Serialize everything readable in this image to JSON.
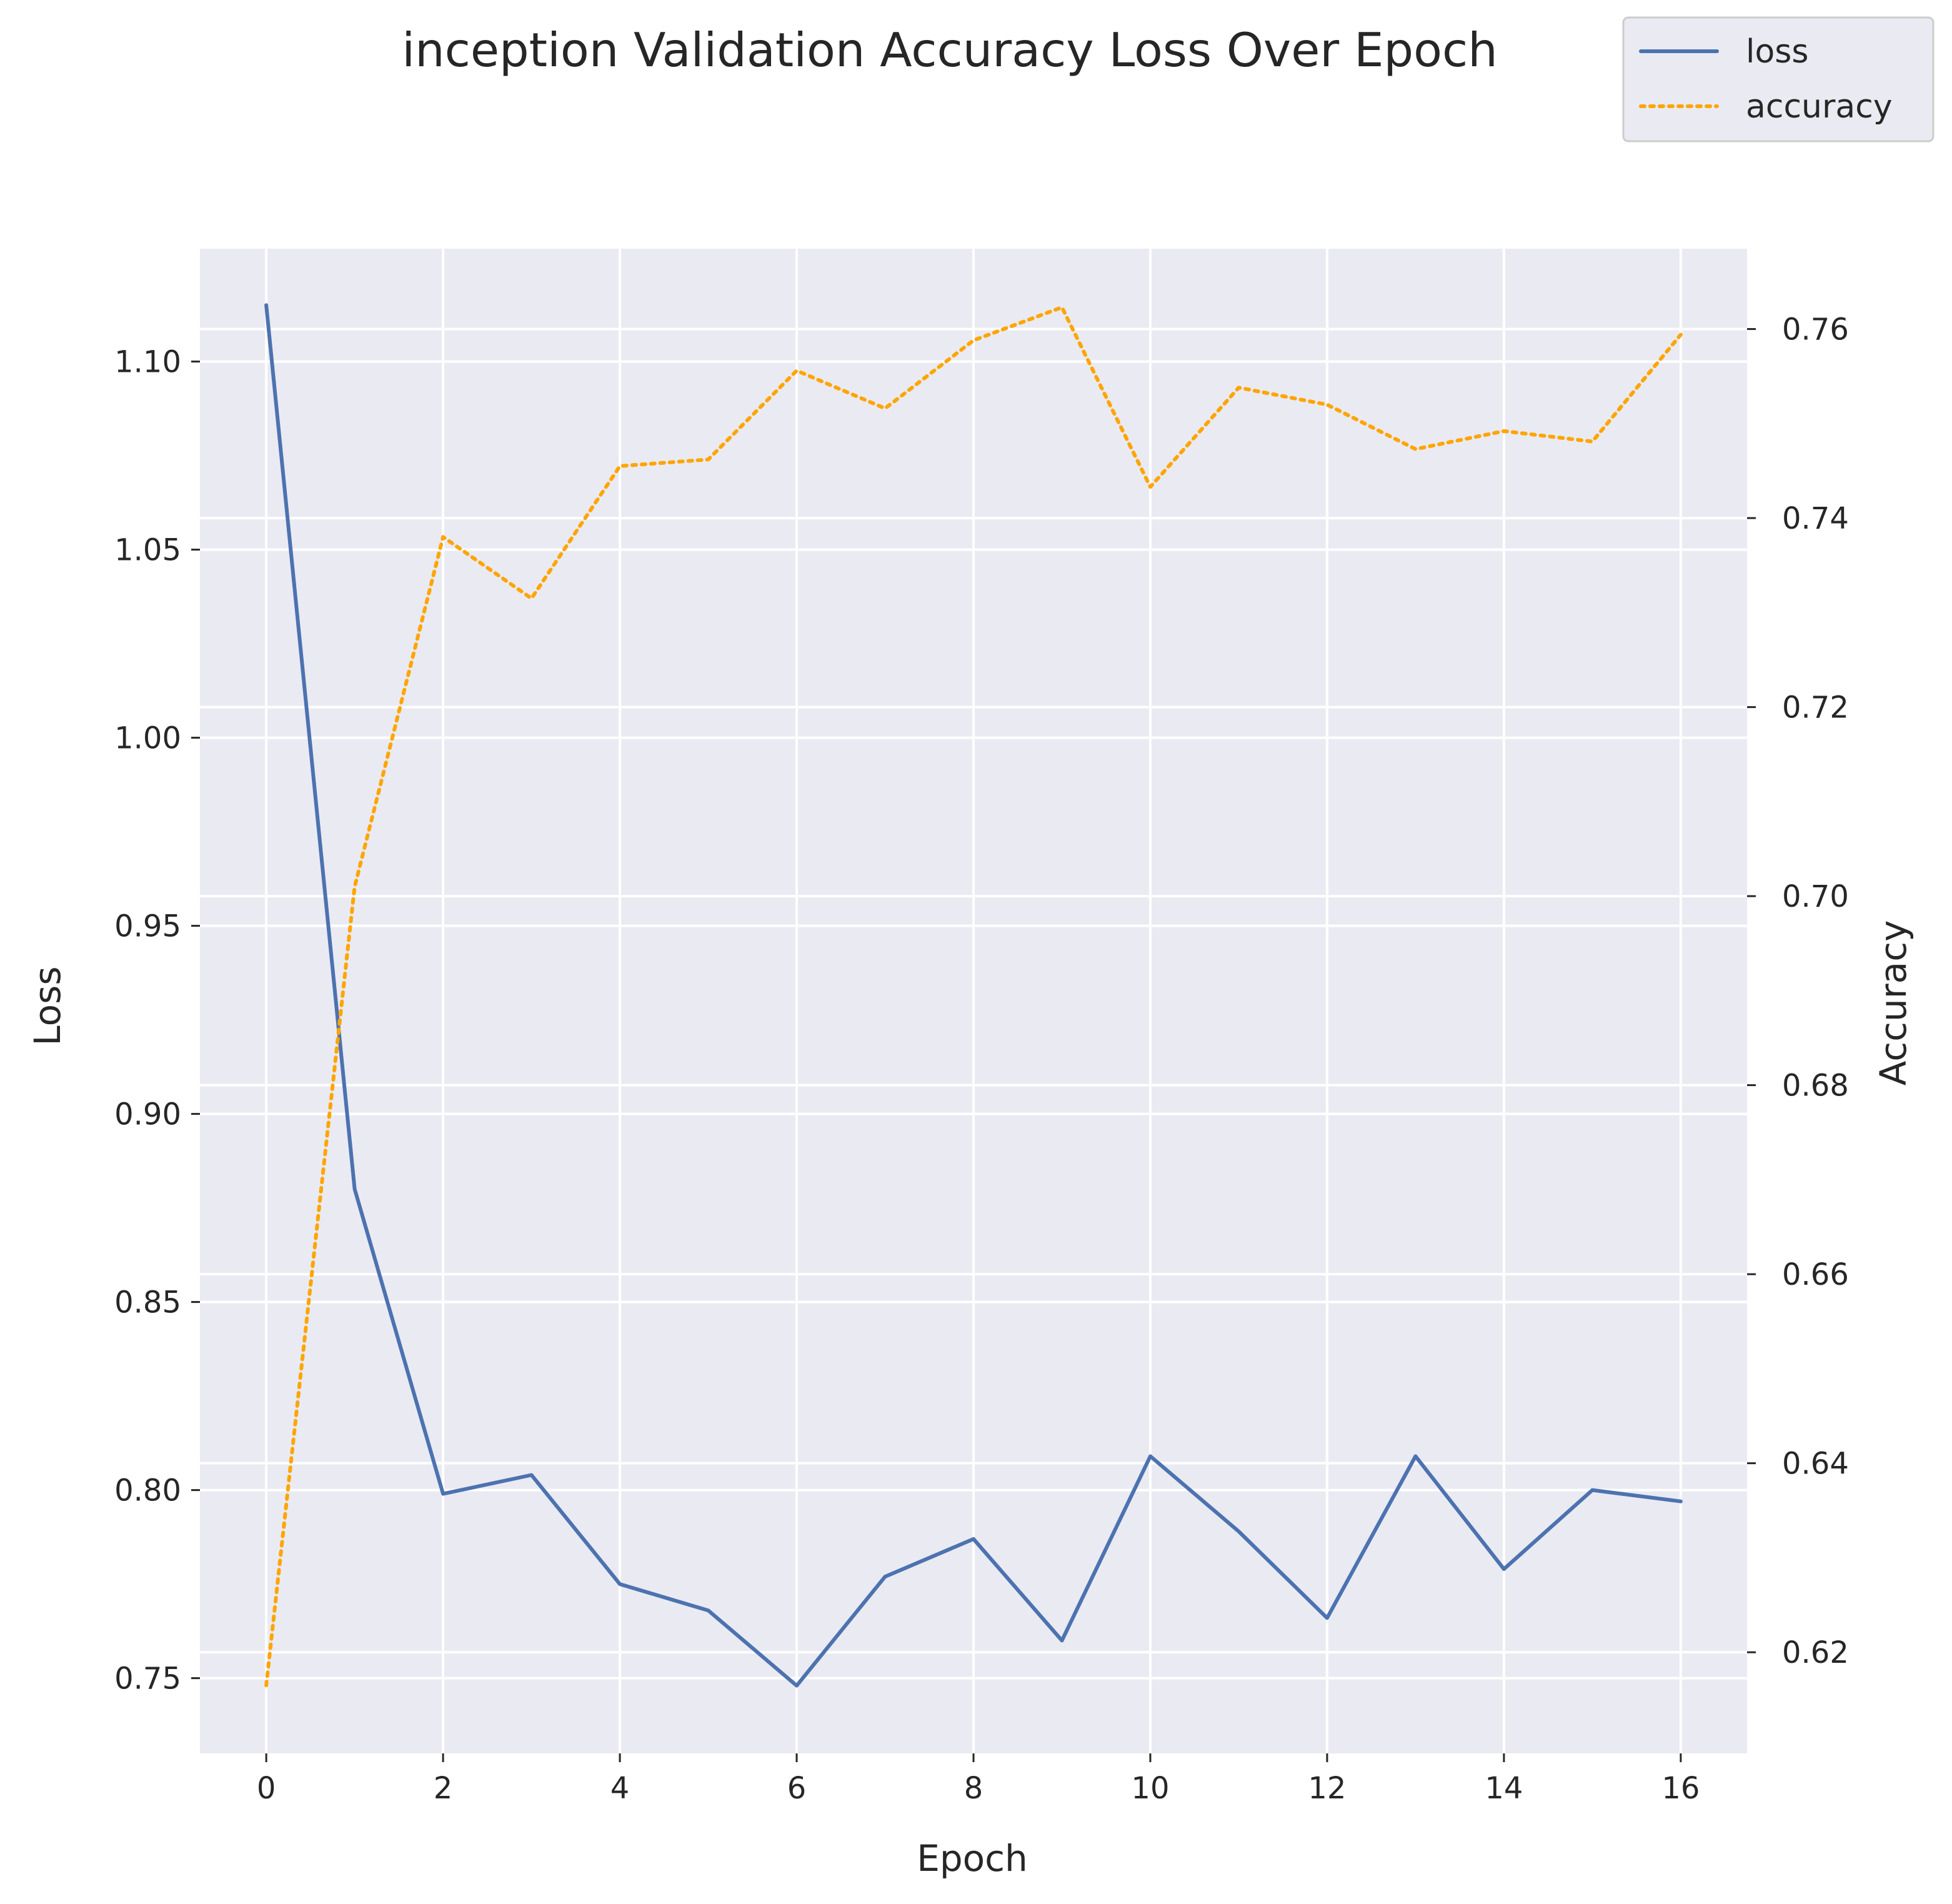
{
  "chart_data": {
    "type": "line",
    "title": "inception Validation Accuracy Loss Over Epoch",
    "xlabel": "Epoch",
    "ylabel_left": "Loss",
    "ylabel_right": "Accuracy",
    "x": [
      0,
      1,
      2,
      3,
      4,
      5,
      6,
      7,
      8,
      9,
      10,
      11,
      12,
      13,
      14,
      15,
      16
    ],
    "xlim": [
      -0.75,
      16.75
    ],
    "ylim_left": [
      0.73,
      1.13
    ],
    "ylim_right": [
      0.6093,
      0.7685
    ],
    "xticks": [
      0,
      2,
      4,
      6,
      8,
      10,
      12,
      14,
      16
    ],
    "yticks_left": [
      0.75,
      0.8,
      0.85,
      0.9,
      0.95,
      1.0,
      1.05,
      1.1
    ],
    "yticks_right": [
      0.62,
      0.64,
      0.66,
      0.68,
      0.7,
      0.72,
      0.74,
      0.76
    ],
    "grid": true,
    "legend_position": "upper right, outside the plot area",
    "series": [
      {
        "name": "loss",
        "axis": "left",
        "color": "#4c72b0",
        "style": "solid",
        "values": [
          1.115,
          0.88,
          0.799,
          0.804,
          0.775,
          0.768,
          0.748,
          0.777,
          0.787,
          0.76,
          0.809,
          0.789,
          0.766,
          0.809,
          0.779,
          0.8,
          0.797
        ]
      },
      {
        "name": "accuracy",
        "axis": "right",
        "color": "#ffa500",
        "style": "dotted",
        "values": [
          0.6165,
          0.701,
          0.738,
          0.7315,
          0.7455,
          0.7462,
          0.7556,
          0.7516,
          0.7588,
          0.7623,
          0.7433,
          0.7538,
          0.752,
          0.7473,
          0.7492,
          0.7481,
          0.7594
        ]
      }
    ]
  },
  "colors": {
    "plot_background": "#eaeaf2",
    "grid": "#ffffff",
    "text": "#262626",
    "legend_border": "#cccccc"
  }
}
